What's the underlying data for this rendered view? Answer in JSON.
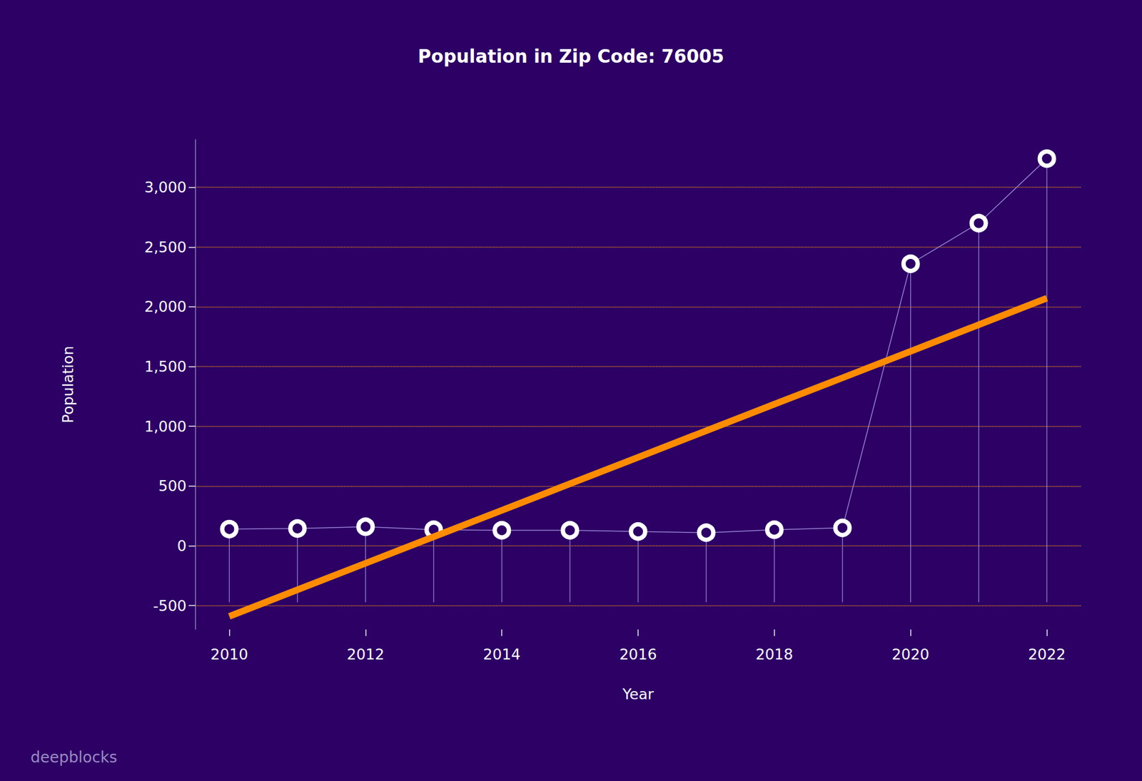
{
  "chart_data": {
    "type": "line",
    "title": "Population in Zip Code: 76005",
    "x_label": "Year",
    "y_label": "Population",
    "annotations": [
      "deepblocks"
    ],
    "categories": [
      "2010",
      null,
      "2012",
      null,
      "2014",
      null,
      "2016",
      null,
      "2018",
      null,
      "2020",
      null,
      "2022"
    ],
    "series": [
      {
        "color": "#ffffff",
        "marker": "o",
        "line_style": "solid",
        "values": [
          140,
          145,
          160,
          135,
          130,
          130,
          120,
          110,
          135,
          150,
          2360,
          2700,
          3240
        ]
      },
      {
        "color": "#ff8c00",
        "line_style": "solid",
        "values": [
          -590,
          -368,
          -146,
          76,
          297,
          519,
          741,
          963,
          1185,
          1406,
          1628,
          1850,
          2072
        ]
      }
    ],
    "ylim": [
      -700,
      3400
    ],
    "yticks": [
      -500,
      0,
      500,
      {
        "value": 1000,
        "label": "1,000"
      },
      {
        "value": 1500,
        "label": "1,500"
      },
      {
        "value": 2000,
        "label": "2,000"
      },
      {
        "value": 2500,
        "label": "2,500"
      },
      {
        "value": 3000,
        "label": "3,000"
      }
    ],
    "grid": true
  }
}
